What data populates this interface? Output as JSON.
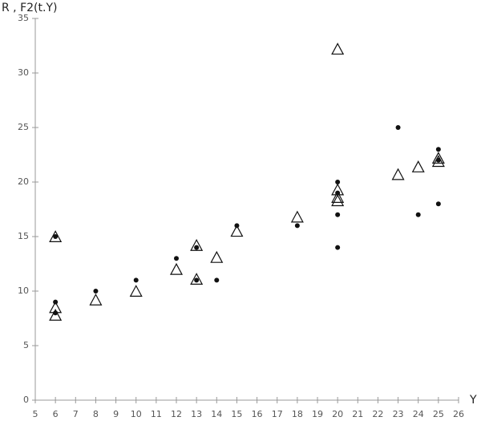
{
  "chart_data": {
    "type": "scatter",
    "y_label": "R , F2(t.Y)",
    "x_label": "Y",
    "xlim": [
      5,
      26
    ],
    "xticks": [
      5,
      6,
      7,
      8,
      9,
      10,
      11,
      12,
      13,
      14,
      15,
      16,
      17,
      18,
      19,
      20,
      21,
      22,
      23,
      24,
      25,
      26
    ],
    "ylim": [
      0,
      35
    ],
    "yticks": [
      0,
      5,
      10,
      15,
      20,
      25,
      30,
      35
    ],
    "grid": false,
    "series": [
      {
        "name": "R",
        "color": "#111111",
        "marker": "circle",
        "x": [
          6,
          6,
          6,
          8,
          10,
          12,
          13,
          13,
          14,
          15,
          18,
          20,
          20,
          20,
          20,
          23,
          24,
          25,
          25,
          25
        ],
        "values": [
          15,
          9,
          8,
          10,
          11,
          13,
          14,
          11,
          11,
          16,
          16,
          20,
          19,
          17,
          14,
          25,
          17,
          23,
          22,
          18
        ]
      },
      {
        "name": "F2(t.Y)",
        "color": "#111111",
        "marker": "triangle",
        "x": [
          6,
          6,
          6,
          8,
          10,
          12,
          13,
          13,
          14,
          15,
          18,
          20,
          20,
          20,
          20,
          23,
          24,
          25,
          25
        ],
        "values": [
          14.9,
          8.4,
          7.7,
          9.1,
          9.9,
          11.9,
          14.1,
          11.0,
          13.0,
          15.4,
          16.7,
          32.1,
          19.2,
          18.5,
          18.2,
          20.6,
          21.3,
          22.1,
          21.8
        ]
      }
    ]
  }
}
